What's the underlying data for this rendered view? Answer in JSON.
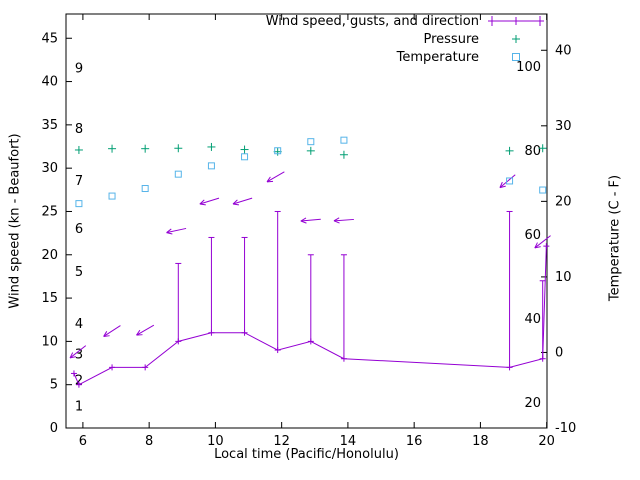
{
  "chart_data": {
    "type": "line",
    "title": "",
    "colors": {
      "wind": "#9400d3",
      "pressure": "#009e73",
      "temperature": "#56b4e9",
      "axis": "#000000",
      "background": "#ffffff"
    },
    "legend": [
      {
        "label": "Wind speed, gusts, and direction",
        "marker": "yerrorline",
        "color": "#9400d3"
      },
      {
        "label": "Pressure",
        "marker": "plus",
        "color": "#009e73"
      },
      {
        "label": "Temperature",
        "marker": "open-square",
        "color": "#56b4e9"
      }
    ],
    "axes": {
      "x": {
        "label": "Local time (Pacific/Honolulu)",
        "ticks": [
          6,
          8,
          10,
          12,
          14,
          16,
          18,
          20
        ],
        "range": [
          5.49,
          20.01
        ]
      },
      "y_left": {
        "label": "Wind speed (kn - Beaufort)",
        "ticks": [
          0,
          5,
          10,
          15,
          20,
          25,
          30,
          35,
          40,
          45
        ],
        "range": [
          0,
          47.8
        ],
        "beaufort_labels": [
          {
            "label": "1",
            "kn": 2.5
          },
          {
            "label": "2",
            "kn": 5.5
          },
          {
            "label": "3",
            "kn": 8.5
          },
          {
            "label": "4",
            "kn": 12
          },
          {
            "label": "5",
            "kn": 18
          },
          {
            "label": "6",
            "kn": 23
          },
          {
            "label": "7",
            "kn": 28.5
          },
          {
            "label": "8",
            "kn": 34.5
          },
          {
            "label": "9",
            "kn": 41.5
          }
        ]
      },
      "y_right": {
        "label": "Temperature (C - F)",
        "ticks_c": [
          -10,
          0,
          10,
          20,
          30,
          40
        ],
        "range_c": [
          -10,
          44.8
        ],
        "fahrenheit_labels": [
          20,
          40,
          60,
          80,
          100
        ]
      }
    },
    "wind": {
      "x": [
        5.73,
        5.88,
        6.88,
        7.88,
        8.88,
        9.88,
        10.88,
        11.88,
        12.88,
        13.88,
        18.88,
        19.88,
        19.99
      ],
      "speed_kn": [
        6.3,
        5,
        7,
        7,
        10,
        11,
        11,
        9,
        10,
        8,
        7,
        8,
        21
      ],
      "gust_kn": [
        null,
        null,
        null,
        null,
        19,
        22,
        22,
        25,
        20,
        20,
        25,
        17,
        null
      ],
      "arrows": [
        {
          "x": 5.85,
          "y_kn": 8.8,
          "angle_deg": 142
        },
        {
          "x": 6.88,
          "y_kn": 11.2,
          "angle_deg": 147
        },
        {
          "x": 7.88,
          "y_kn": 11.3,
          "angle_deg": 150
        },
        {
          "x": 8.82,
          "y_kn": 22.8,
          "angle_deg": 168
        },
        {
          "x": 9.82,
          "y_kn": 26.2,
          "angle_deg": 163
        },
        {
          "x": 10.82,
          "y_kn": 26.2,
          "angle_deg": 163
        },
        {
          "x": 11.82,
          "y_kn": 29.0,
          "angle_deg": 150
        },
        {
          "x": 12.88,
          "y_kn": 24.0,
          "angle_deg": 175
        },
        {
          "x": 13.88,
          "y_kn": 24.0,
          "angle_deg": 176
        },
        {
          "x": 18.82,
          "y_kn": 28.5,
          "angle_deg": 140
        },
        {
          "x": 19.88,
          "y_kn": 21.5,
          "angle_deg": 142
        }
      ]
    },
    "pressure": {
      "x": [
        5.88,
        6.88,
        7.88,
        8.88,
        9.88,
        10.88,
        11.88,
        12.88,
        13.88,
        18.88,
        19.88
      ],
      "y_left_units": [
        32.1,
        32.25,
        32.25,
        32.3,
        32.45,
        32.15,
        31.9,
        32.0,
        31.55,
        32.0,
        32.3
      ]
    },
    "temperature": {
      "x": [
        5.88,
        6.88,
        7.88,
        8.88,
        9.88,
        10.88,
        11.88,
        12.88,
        13.88,
        18.88,
        19.88
      ],
      "celsius": [
        19.7,
        20.7,
        21.7,
        23.6,
        24.7,
        25.9,
        26.7,
        27.9,
        28.1,
        22.7,
        21.5
      ]
    }
  }
}
